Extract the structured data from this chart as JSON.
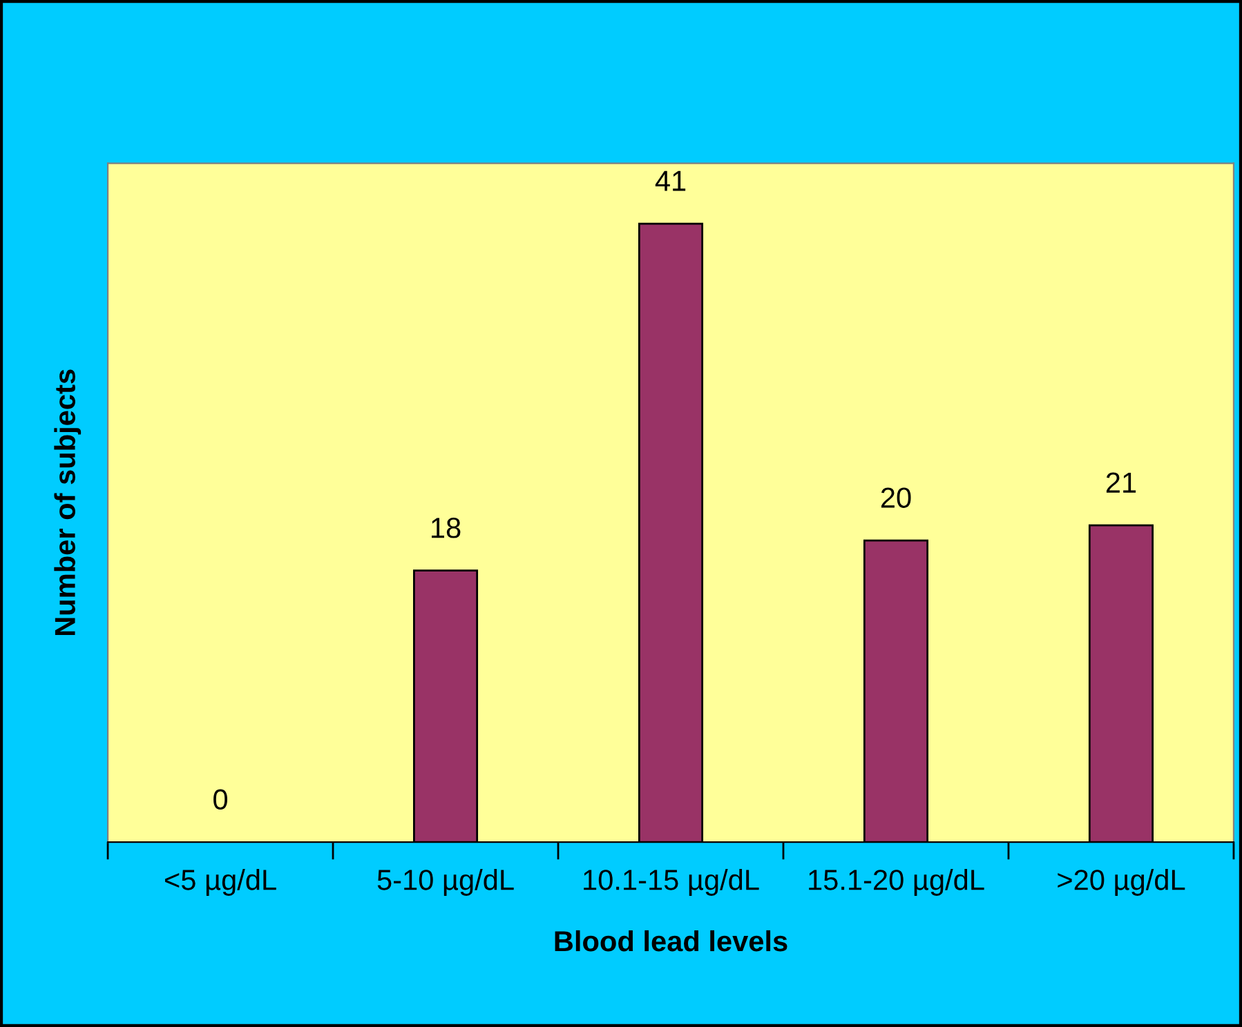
{
  "chart_data": {
    "type": "bar",
    "xlabel": "Blood lead levels",
    "ylabel": "Number of subjects",
    "categories": [
      "<5 µg/dL",
      "5-10 µg/dL",
      "10.1-15 µg/dL",
      "15.1-20 µg/dL",
      ">20 µg/dL"
    ],
    "values": [
      0,
      18,
      41,
      20,
      21
    ],
    "color": "#993366",
    "ylim": [
      0,
      45
    ],
    "data_labels": true,
    "grid": false,
    "legend": false
  }
}
